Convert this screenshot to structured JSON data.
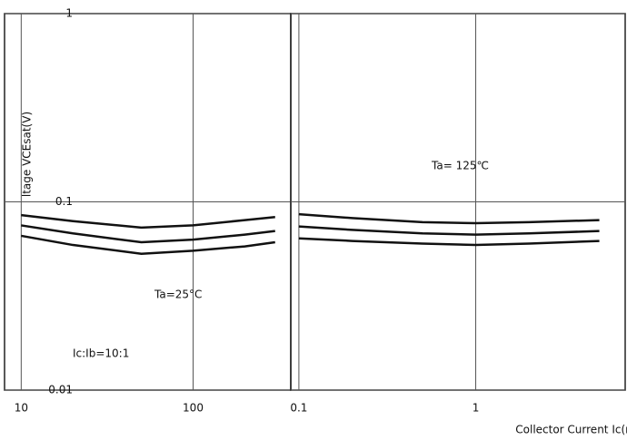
{
  "chart_data": [
    {
      "type": "line",
      "y_label": "ltage   VCEsat(V)",
      "annotations": [
        "Ic:Ib=10:1",
        "Ta=25°C"
      ],
      "xscale": "log",
      "yscale": "log",
      "grid": true,
      "x": [
        10,
        20,
        50,
        100,
        200,
        300
      ],
      "xlim": [
        8,
        370
      ],
      "xticks": [
        10,
        100
      ],
      "ylim": [
        0.01,
        1
      ],
      "yticks": [
        0.01,
        0.1,
        1
      ],
      "series": [
        {
          "color": "#111111",
          "values": [
            0.085,
            0.079,
            0.073,
            0.075,
            0.08,
            0.083
          ]
        },
        {
          "color": "#111111",
          "values": [
            0.075,
            0.068,
            0.061,
            0.063,
            0.067,
            0.07
          ]
        },
        {
          "color": "#111111",
          "values": [
            0.066,
            0.059,
            0.053,
            0.055,
            0.058,
            0.061
          ]
        }
      ]
    },
    {
      "type": "line",
      "x_label": "Collector Current   Ic(mA)",
      "annotations": [
        "Ta= 125℃"
      ],
      "xscale": "log",
      "yscale": "log",
      "grid": true,
      "x": [
        0.1,
        0.2,
        0.5,
        1,
        2,
        5
      ],
      "xlim": [
        0.09,
        7
      ],
      "xticks": [
        0.1,
        1
      ],
      "ylim": [
        0.01,
        1
      ],
      "yticks": [
        0.01,
        0.1,
        1
      ],
      "series": [
        {
          "color": "#111111",
          "values": [
            0.086,
            0.082,
            0.078,
            0.077,
            0.078,
            0.08
          ]
        },
        {
          "color": "#111111",
          "values": [
            0.074,
            0.071,
            0.068,
            0.067,
            0.068,
            0.07
          ]
        },
        {
          "color": "#111111",
          "values": [
            0.064,
            0.062,
            0.06,
            0.059,
            0.06,
            0.062
          ]
        }
      ]
    }
  ]
}
